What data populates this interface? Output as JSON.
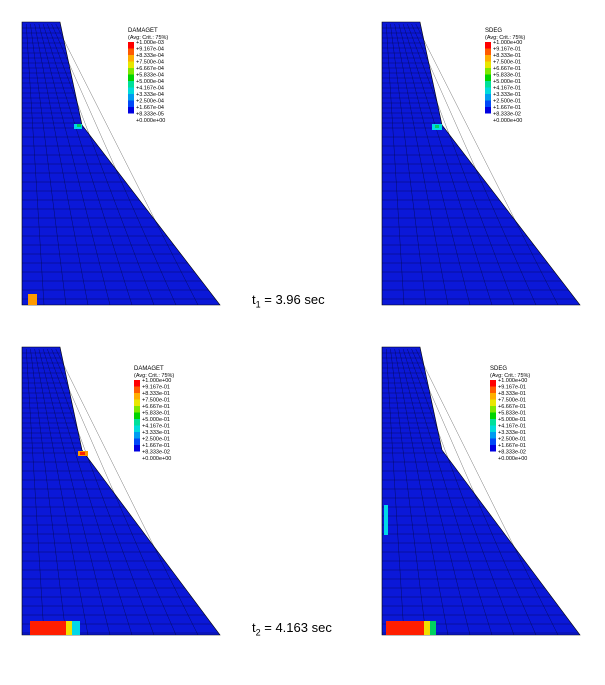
{
  "colors": {
    "background": "#ffffff",
    "mesh_fill": "#0b18d8",
    "mesh_line": "#000000",
    "damage_red": "#ff1e00",
    "damage_orange": "#ff9a00",
    "damage_yellow": "#f0e000",
    "damage_green": "#00d060",
    "damage_cyan": "#00d8e8",
    "legend_colors": [
      "#ff0000",
      "#ff5a00",
      "#ffae00",
      "#e9e600",
      "#7ee800",
      "#00d400",
      "#00e09a",
      "#00dcdc",
      "#009cf0",
      "#0048f8",
      "#0000e0"
    ]
  },
  "frames": [
    {
      "time": {
        "prefix": "t",
        "subscript": "1",
        "rest": " = 3.96 sec"
      },
      "panels": [
        {
          "name": "DAMAGET",
          "legend_title": "DAMAGET",
          "legend_subtitle": "(Avg: Crit.: 75%)",
          "legend_values": [
            "+1.000e-03",
            "+9.167e-04",
            "+8.333e-04",
            "+7.500e-04",
            "+6.667e-04",
            "+5.833e-04",
            "+5.000e-04",
            "+4.167e-04",
            "+3.333e-04",
            "+2.500e-04",
            "+1.667e-04",
            "+8.333e-05",
            "+0.000e+00"
          ]
        },
        {
          "name": "SDEG",
          "legend_title": "SDEG",
          "legend_subtitle": "(Avg: Crit.: 75%)",
          "legend_values": [
            "+1.000e+00",
            "+9.167e-01",
            "+8.333e-01",
            "+7.500e-01",
            "+6.667e-01",
            "+5.833e-01",
            "+5.000e-01",
            "+4.167e-01",
            "+3.333e-01",
            "+2.500e-01",
            "+1.667e-01",
            "+8.333e-02",
            "+0.000e+00"
          ]
        }
      ]
    },
    {
      "time": {
        "prefix": "t",
        "subscript": "2",
        "rest": " = 4.163 sec"
      },
      "panels": [
        {
          "name": "DAMAGET",
          "legend_title": "DAMAGET",
          "legend_subtitle": "(Avg: Crit.: 75%)",
          "legend_values": [
            "+1.000e+00",
            "+9.167e-01",
            "+8.333e-01",
            "+7.500e-01",
            "+6.667e-01",
            "+5.833e-01",
            "+5.000e-01",
            "+4.167e-01",
            "+3.333e-01",
            "+2.500e-01",
            "+1.667e-01",
            "+8.333e-02",
            "+0.000e+00"
          ]
        },
        {
          "name": "SDEG",
          "legend_title": "SDEG",
          "legend_subtitle": "(Avg: Crit.: 75%)",
          "legend_values": [
            "+1.000e+00",
            "+9.167e-01",
            "+8.333e-01",
            "+7.500e-01",
            "+6.667e-01",
            "+5.833e-01",
            "+5.000e-01",
            "+4.167e-01",
            "+3.333e-01",
            "+2.500e-01",
            "+1.667e-01",
            "+8.333e-02",
            "+0.000e+00"
          ]
        }
      ]
    }
  ]
}
